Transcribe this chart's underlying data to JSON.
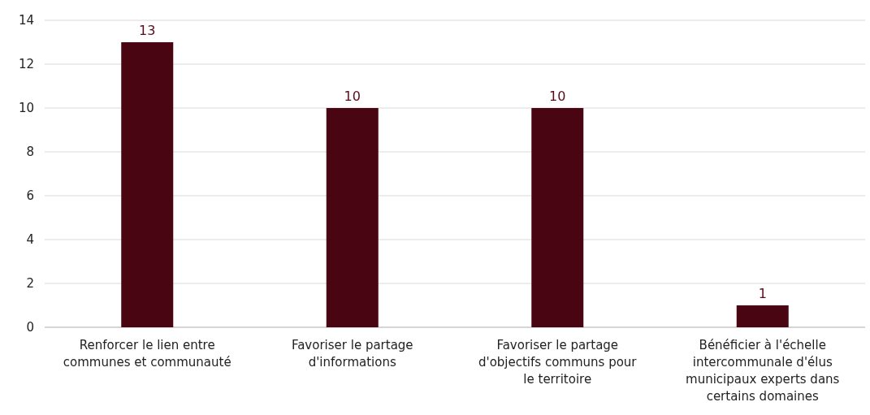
{
  "chart_data": {
    "type": "bar",
    "categories": [
      "Renforcer le lien entre communes et communauté",
      "Favoriser le partage d'informations",
      "Favoriser le partage d'objectifs communs pour le territoire",
      "Bénéficier à l'échelle intercommunale d'élus municipaux experts dans certains domaines"
    ],
    "values": [
      13,
      10,
      10,
      1
    ],
    "color": "#4a0512",
    "ylim": [
      0,
      14
    ],
    "yticks": [
      0,
      2,
      4,
      6,
      8,
      10,
      12,
      14
    ],
    "grid": "y",
    "data_labels": true
  }
}
